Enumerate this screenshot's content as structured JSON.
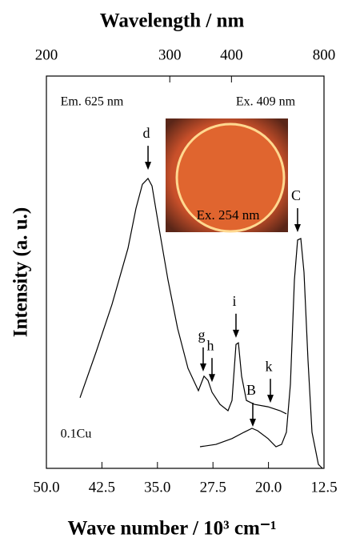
{
  "chart_data": {
    "type": "line",
    "x_label": "Wave number / 10³ cm⁻¹",
    "x2_label": "Wavelength / nm",
    "y_label": "Intensity (a. u.)",
    "xlim": [
      50,
      12.5
    ],
    "xticks": [
      {
        "value": 50,
        "label": "50.0"
      },
      42.5,
      {
        "value": 35,
        "label": "35.0"
      },
      27.5,
      {
        "value": 20,
        "label": "20.0"
      },
      12.5
    ],
    "x2lim": [
      200,
      800
    ],
    "x2scale": "reciprocal",
    "x2ticks": [
      200,
      300,
      400,
      800
    ],
    "ylim": [
      0,
      1
    ],
    "series": [
      {
        "color": "#000000",
        "x": [
          45.46,
          43.3,
          41.14,
          38.98,
          37.9,
          37.03,
          36.27,
          35.73,
          34.87,
          33.57,
          32.28,
          30.87,
          29.47,
          28.71,
          28.17,
          27.63,
          26.55,
          25.47,
          24.93,
          24.39,
          24.06,
          23.63,
          22.98,
          21.9,
          20.06,
          18.44,
          17.58
        ],
        "values": [
          0.18,
          0.296,
          0.418,
          0.561,
          0.663,
          0.724,
          0.739,
          0.72,
          0.622,
          0.48,
          0.357,
          0.255,
          0.198,
          0.235,
          0.224,
          0.194,
          0.163,
          0.147,
          0.173,
          0.316,
          0.32,
          0.235,
          0.173,
          0.163,
          0.157,
          0.147,
          0.139
        ]
      },
      {
        "color": "#000000",
        "x": [
          29.25,
          27.09,
          24.93,
          23.31,
          22.23,
          21.47,
          20.06,
          18.98,
          18.23,
          17.58,
          17.04,
          16.5,
          16.07,
          15.63,
          15.2,
          14.66,
          14.12,
          13.26,
          12.72
        ],
        "values": [
          0.055,
          0.061,
          0.076,
          0.092,
          0.102,
          0.096,
          0.076,
          0.055,
          0.061,
          0.092,
          0.214,
          0.48,
          0.582,
          0.586,
          0.5,
          0.276,
          0.092,
          0.01,
          0
        ]
      }
    ],
    "annotations": [
      {
        "text": "d",
        "x": 36.27,
        "y": 0.761
      },
      {
        "text": "g",
        "x": 28.82,
        "y": 0.247
      },
      {
        "text": "h",
        "x": 27.63,
        "y": 0.22
      },
      {
        "text": "i",
        "x": 24.39,
        "y": 0.333
      },
      {
        "text": "k",
        "x": 19.74,
        "y": 0.167
      },
      {
        "text": "B",
        "x": 22.12,
        "y": 0.106
      },
      {
        "text": "C",
        "x": 16.07,
        "y": 0.602
      }
    ],
    "notes": [
      "Em. 625 nm",
      "Ex. 409 nm",
      "0.1Cu"
    ],
    "inset_label": "Ex. 254 nm"
  }
}
